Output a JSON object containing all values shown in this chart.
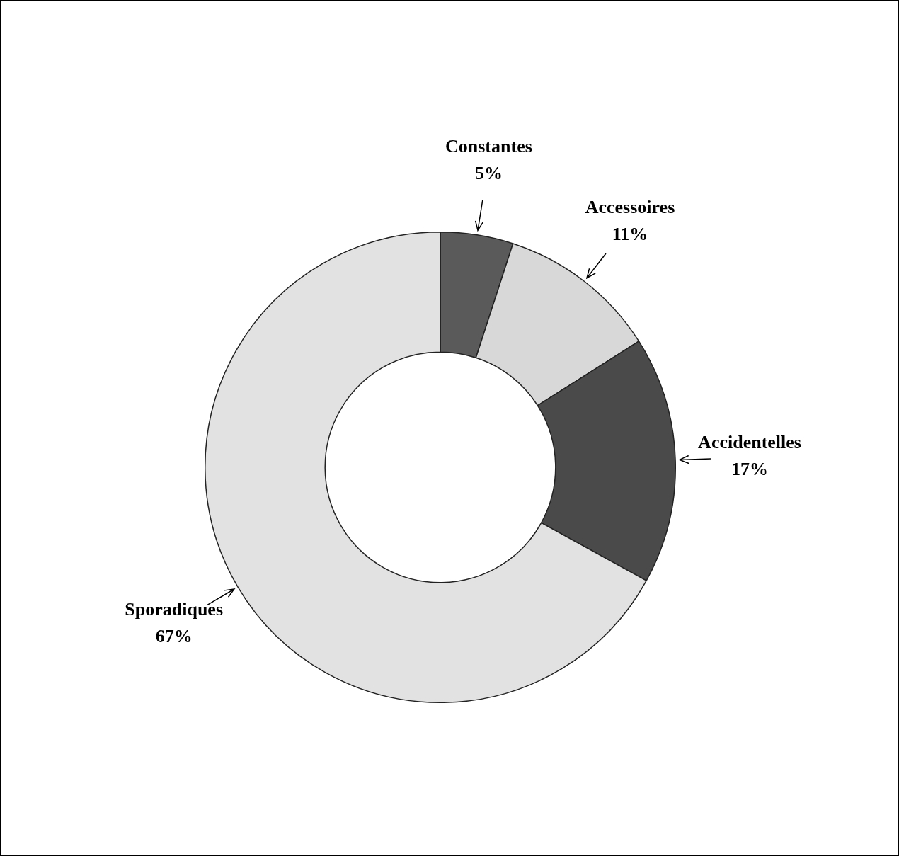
{
  "chart_data": {
    "type": "donut",
    "categories": [
      "Constantes",
      "Accessoires",
      "Accidentelles",
      "Sporadiques"
    ],
    "values": [
      5,
      11,
      17,
      67
    ],
    "value_labels": [
      "5%",
      "11%",
      "17%",
      "67%"
    ],
    "colors": [
      "#5a5a5a",
      "#d8d8d8",
      "#4a4a4a",
      "#e2e2e2"
    ],
    "legend": false
  }
}
